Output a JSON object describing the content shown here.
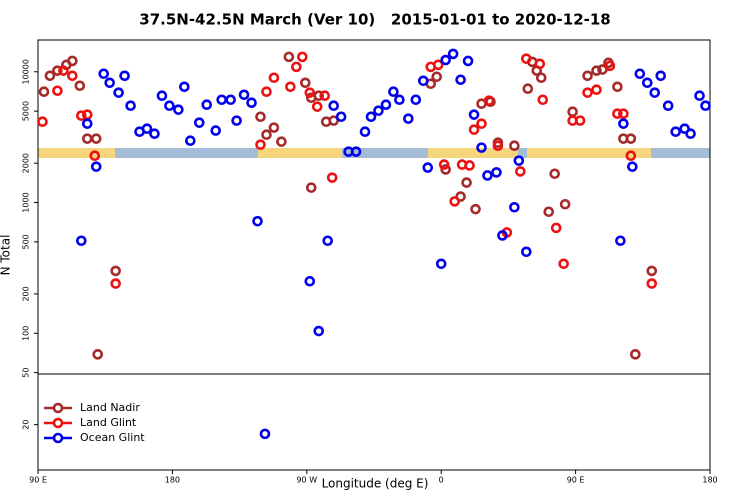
{
  "chart_data": {
    "type": "scatter",
    "title": "37.5N-42.5N March (Ver 10)   2015-01-01 to 2020-12-18",
    "x_label": "Longitude (deg E)",
    "y_label": "N Total",
    "xlim": [
      90,
      540
    ],
    "xticks": [
      {
        "value": 90,
        "label": "90 E"
      },
      180,
      {
        "value": 270,
        "label": "90 W"
      },
      {
        "value": 360,
        "label": "0"
      },
      {
        "value": 450,
        "label": "90 E"
      },
      {
        "value": 540,
        "label": "180"
      }
    ],
    "ylim": [
      9,
      17500
    ],
    "y_scale": "log",
    "yticks": [
      20,
      50,
      100,
      200,
      500,
      1000,
      2000,
      5000,
      10000
    ],
    "legend": "lower left",
    "series": [
      {
        "name": "Land Nadir",
        "color": "#a52a2a",
        "x": [
          94,
          98,
          103,
          109,
          113,
          118,
          123,
          129,
          130,
          142,
          239,
          243,
          248,
          253,
          258,
          269,
          273,
          273,
          278,
          283,
          288,
          353,
          357,
          363,
          373,
          377,
          383,
          387,
          393,
          398,
          409,
          418,
          421,
          424,
          427,
          432,
          436,
          443,
          448,
          458,
          464,
          468,
          472,
          478,
          482,
          487,
          490,
          501
        ],
        "values": [
          7040,
          9320,
          10200,
          11300,
          12100,
          7820,
          3080,
          3080,
          69,
          300,
          4530,
          3300,
          3740,
          2920,
          13000,
          8240,
          1300,
          6330,
          6560,
          4150,
          4230,
          8100,
          9160,
          1790,
          1110,
          1420,
          890,
          5700,
          5900,
          2870,
          2720,
          7420,
          11900,
          10200,
          9000,
          850,
          1660,
          970,
          4950,
          9320,
          10200,
          10400,
          11700,
          7680,
          3080,
          3080,
          69,
          300
        ]
      },
      {
        "name": "Land Glint",
        "color": "#ee1111",
        "x": [
          93,
          103,
          107,
          113,
          119,
          123,
          128,
          142,
          239,
          243,
          248,
          259,
          263,
          267,
          272,
          277,
          282,
          287,
          353,
          358,
          362,
          369,
          374,
          379,
          382,
          387,
          392,
          398,
          404,
          413,
          417,
          426,
          428,
          437,
          442,
          448,
          453,
          458,
          464,
          473,
          478,
          482,
          487,
          501
        ],
        "values": [
          4150,
          7160,
          10200,
          9320,
          4620,
          4700,
          2280,
          240,
          2770,
          7040,
          9000,
          7680,
          10900,
          13000,
          6920,
          5410,
          6560,
          1550,
          10900,
          11300,
          1950,
          1020,
          1950,
          1920,
          3610,
          4010,
          6010,
          2720,
          590,
          1730,
          12600,
          11500,
          6110,
          640,
          340,
          4230,
          4230,
          6920,
          7290,
          11100,
          4780,
          4780,
          2280,
          240
        ]
      },
      {
        "name": "Ocean Glint",
        "color": "#0000ee",
        "x": [
          119,
          123,
          129,
          134,
          138,
          144,
          148,
          152,
          158,
          163,
          168,
          173,
          178,
          184,
          188,
          192,
          198,
          203,
          209,
          213,
          219,
          223,
          228,
          233,
          237,
          242,
          272,
          278,
          284,
          288,
          293,
          298,
          303,
          309,
          313,
          318,
          323,
          328,
          332,
          338,
          343,
          348,
          351,
          360,
          363,
          368,
          373,
          378,
          382,
          387,
          391,
          397,
          401,
          409,
          412,
          417,
          480,
          482,
          488,
          493,
          498,
          503,
          507,
          512,
          517,
          523,
          527,
          533,
          537
        ],
        "values": [
          510,
          4010,
          1880,
          9660,
          8240,
          6920,
          9320,
          5500,
          3480,
          3670,
          3360,
          6560,
          5500,
          5130,
          7680,
          2970,
          4080,
          5600,
          3550,
          6110,
          6110,
          4230,
          6670,
          5800,
          720,
          17,
          250,
          104,
          510,
          5500,
          4530,
          2450,
          2450,
          3480,
          4530,
          5040,
          5600,
          7040,
          6110,
          4380,
          6110,
          8530,
          1850,
          340,
          12300,
          13700,
          8690,
          12100,
          4700,
          2630,
          1610,
          1700,
          560,
          920,
          2090,
          420,
          510,
          4010,
          1880,
          9660,
          8240,
          6920,
          9320,
          5500,
          3480,
          3670,
          3360,
          6560,
          5500
        ]
      }
    ]
  }
}
